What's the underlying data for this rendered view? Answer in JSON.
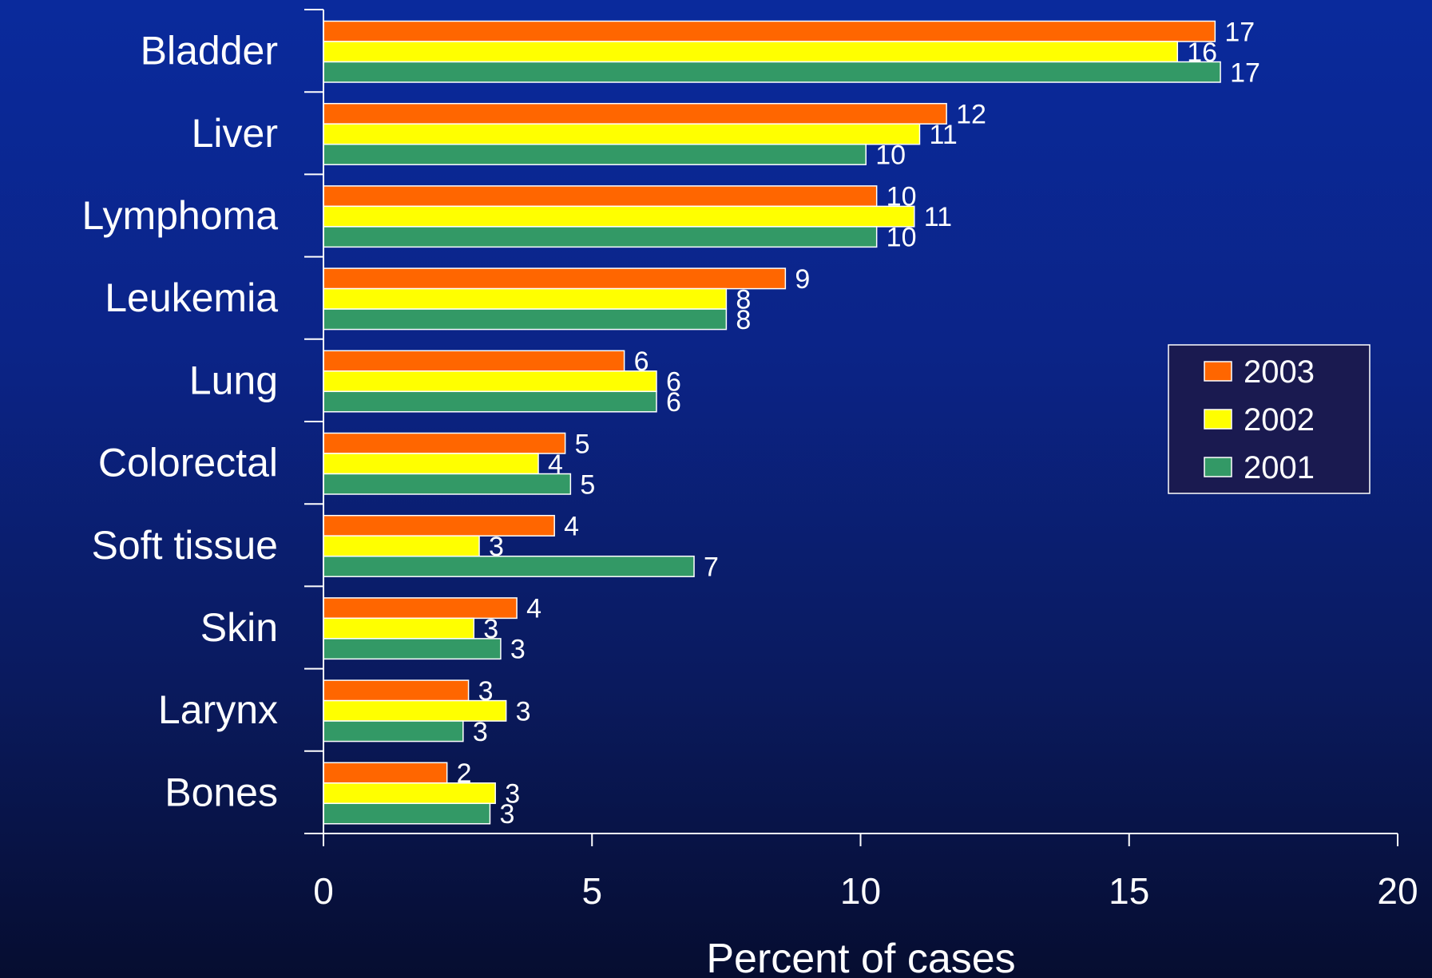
{
  "colors": {
    "series_2003": "#ff6600",
    "series_2002": "#ffff00",
    "series_2001": "#339966",
    "axis": "#ffffff",
    "legend_bg": "#1a1a50"
  },
  "chart_data": {
    "type": "bar",
    "orientation": "horizontal",
    "title": "",
    "xlabel": "Percent of cases",
    "ylabel": "",
    "xlim": [
      0,
      20
    ],
    "x_ticks": [
      0,
      5,
      10,
      15,
      20
    ],
    "grid": false,
    "legend_position": "right",
    "categories": [
      "Bladder",
      "Liver",
      "Lymphoma",
      "Leukemia",
      "Lung",
      "Colorectal",
      "Soft tissue",
      "Skin",
      "Larynx",
      "Bones"
    ],
    "series": [
      {
        "name": "2003",
        "values": [
          16.6,
          11.6,
          10.3,
          8.6,
          5.6,
          4.5,
          4.3,
          3.6,
          2.7,
          2.3
        ],
        "labels": [
          "17",
          "12",
          "10",
          "9",
          "6",
          "5",
          "4",
          "4",
          "3",
          "2"
        ]
      },
      {
        "name": "2002",
        "values": [
          15.9,
          11.1,
          11.0,
          7.5,
          6.2,
          4.0,
          2.9,
          2.8,
          3.4,
          3.2
        ],
        "labels": [
          "16",
          "11",
          "11",
          "8",
          "6",
          "4",
          "3",
          "3",
          "3",
          "3"
        ]
      },
      {
        "name": "2001",
        "values": [
          16.7,
          10.1,
          10.3,
          7.5,
          6.2,
          4.6,
          6.9,
          3.3,
          2.6,
          3.1
        ],
        "labels": [
          "17",
          "10",
          "10",
          "8",
          "6",
          "5",
          "7",
          "3",
          "3",
          "3"
        ]
      }
    ]
  }
}
